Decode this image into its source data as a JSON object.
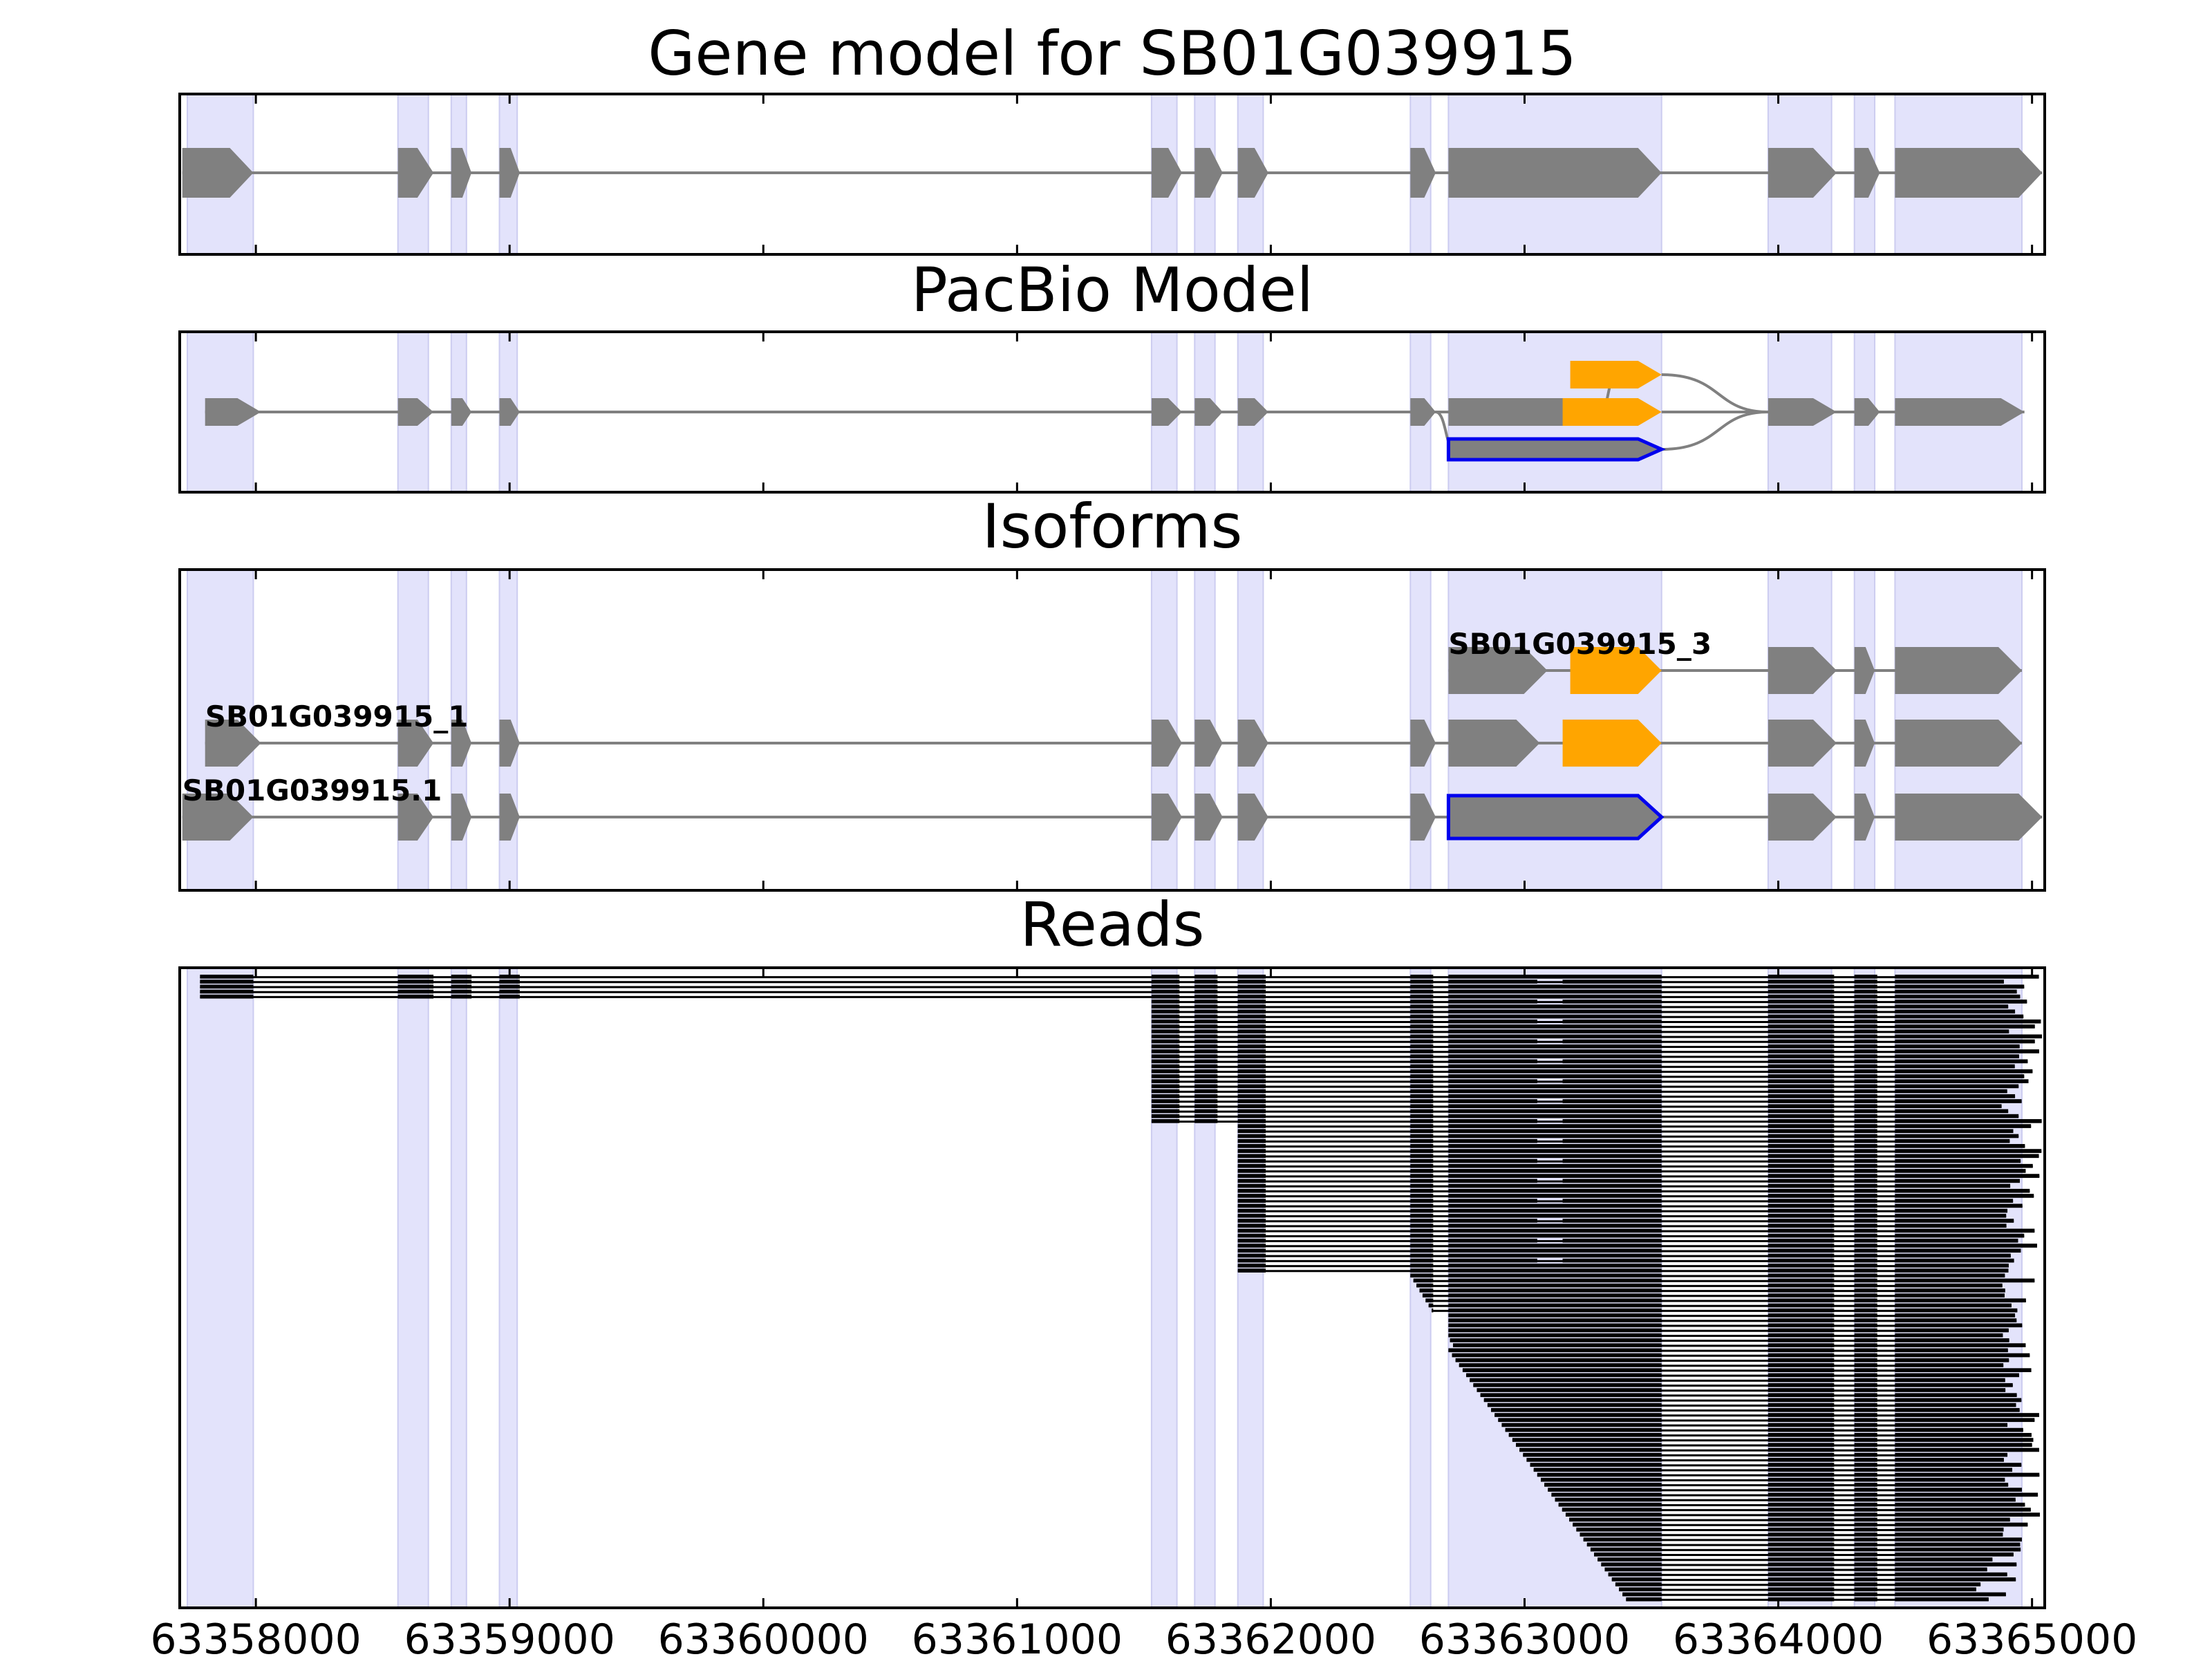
{
  "chart_data": [
    {
      "type": "gene_track",
      "title": "Gene model for SB01G039915",
      "xlim": [
        63357700,
        63365050
      ],
      "highlight_regions": [
        [
          63357730,
          63357990
        ],
        [
          63358560,
          63358680
        ],
        [
          63358770,
          63358830
        ],
        [
          63358960,
          63359030
        ],
        [
          63361530,
          63361630
        ],
        [
          63361700,
          63361780
        ],
        [
          63361870,
          63361970
        ],
        [
          63362550,
          63362630
        ],
        [
          63362700,
          63363540
        ],
        [
          63363960,
          63364210
        ],
        [
          63364300,
          63364380
        ],
        [
          63364460,
          63364960
        ]
      ],
      "models": [
        {
          "label": "",
          "style": "gray",
          "exons": [
            [
              63357710,
              63357990
            ],
            [
              63358560,
              63358700
            ],
            [
              63358770,
              63358850
            ],
            [
              63358960,
              63359040
            ],
            [
              63361530,
              63361650
            ],
            [
              63361700,
              63361810
            ],
            [
              63361870,
              63361990
            ],
            [
              63362550,
              63362650
            ],
            [
              63362700,
              63363540
            ],
            [
              63363960,
              63364230
            ],
            [
              63364300,
              63364400
            ],
            [
              63364460,
              63365040
            ]
          ]
        }
      ]
    },
    {
      "type": "gene_track",
      "title": "PacBio Model",
      "xlim": [
        63357700,
        63365050
      ],
      "highlight_regions": [
        [
          63357730,
          63357990
        ],
        [
          63358560,
          63358680
        ],
        [
          63358770,
          63358830
        ],
        [
          63358960,
          63359030
        ],
        [
          63361530,
          63361630
        ],
        [
          63361700,
          63361780
        ],
        [
          63361870,
          63361970
        ],
        [
          63362550,
          63362630
        ],
        [
          63362700,
          63363540
        ],
        [
          63363960,
          63364210
        ],
        [
          63364300,
          63364380
        ],
        [
          63364460,
          63364960
        ]
      ],
      "models": [
        {
          "label": "",
          "style": "gray",
          "exons": [
            [
              63357800,
              63358020
            ],
            [
              63358560,
              63358700
            ],
            [
              63358770,
              63358850
            ],
            [
              63358960,
              63359040
            ],
            [
              63361530,
              63361650
            ],
            [
              63361700,
              63361810
            ],
            [
              63361870,
              63361990
            ],
            [
              63362550,
              63362650
            ],
            [
              63362700,
              63363300
            ]
          ]
        },
        {
          "label": "",
          "style": "orange",
          "exons": [
            [
              63363180,
              63363540
            ]
          ]
        },
        {
          "label": "",
          "style": "orange",
          "exons": [
            [
              63363150,
              63363540
            ]
          ]
        },
        {
          "label": "",
          "style": "outlined",
          "exons": [
            [
              63362700,
              63363540
            ]
          ]
        },
        {
          "label": "",
          "style": "gray",
          "exons": [
            [
              63363960,
              63364230
            ],
            [
              63364300,
              63364400
            ],
            [
              63364460,
              63364970
            ]
          ]
        }
      ]
    },
    {
      "type": "gene_track",
      "title": "Isoforms",
      "xlim": [
        63357700,
        63365050
      ],
      "highlight_regions": [
        [
          63357730,
          63357990
        ],
        [
          63358560,
          63358680
        ],
        [
          63358770,
          63358830
        ],
        [
          63358960,
          63359030
        ],
        [
          63361530,
          63361630
        ],
        [
          63361700,
          63361780
        ],
        [
          63361870,
          63361970
        ],
        [
          63362550,
          63362630
        ],
        [
          63362700,
          63363540
        ],
        [
          63363960,
          63364210
        ],
        [
          63364300,
          63364380
        ],
        [
          63364460,
          63364960
        ]
      ],
      "models": [
        {
          "label": "SB01G039915_3",
          "style": "gray",
          "exons": [
            [
              63362700,
              63363090
            ],
            [
              63363180,
              63363540
            ],
            [
              63363960,
              63364230
            ],
            [
              63364300,
              63364380
            ],
            [
              63364460,
              63364960
            ]
          ]
        },
        {
          "label": "SB01G039915_1",
          "style": "gray",
          "exons": [
            [
              63357800,
              63358020
            ],
            [
              63358560,
              63358700
            ],
            [
              63358770,
              63358850
            ],
            [
              63358960,
              63359040
            ],
            [
              63361530,
              63361650
            ],
            [
              63361700,
              63361810
            ],
            [
              63361870,
              63361990
            ],
            [
              63362550,
              63362650
            ],
            [
              63362700,
              63363060
            ],
            [
              63363150,
              63363540
            ],
            [
              63363960,
              63364230
            ],
            [
              63364300,
              63364380
            ],
            [
              63364460,
              63364960
            ]
          ]
        },
        {
          "label": "SB01G039915.1",
          "style": "gray",
          "exons": [
            [
              63357710,
              63357990
            ],
            [
              63358560,
              63358700
            ],
            [
              63358770,
              63358850
            ],
            [
              63358960,
              63359040
            ],
            [
              63361530,
              63361650
            ],
            [
              63361700,
              63361810
            ],
            [
              63361870,
              63361990
            ],
            [
              63362550,
              63362650
            ],
            [
              63362700,
              63363540
            ],
            [
              63363960,
              63364230
            ],
            [
              63364300,
              63364380
            ],
            [
              63364460,
              63365040
            ]
          ]
        }
      ]
    },
    {
      "type": "reads",
      "title": "Reads",
      "xlim": [
        63357700,
        63365050
      ],
      "xticks": [
        63358000,
        63359000,
        63360000,
        63361000,
        63362000,
        63363000,
        63364000,
        63365000
      ],
      "highlight_regions": [
        [
          63357730,
          63357990
        ],
        [
          63358560,
          63358680
        ],
        [
          63358770,
          63358830
        ],
        [
          63358960,
          63359030
        ],
        [
          63361530,
          63361630
        ],
        [
          63361700,
          63361780
        ],
        [
          63361870,
          63361970
        ],
        [
          63362550,
          63362630
        ],
        [
          63362700,
          63363540
        ],
        [
          63363960,
          63364210
        ],
        [
          63364300,
          63364380
        ],
        [
          63364460,
          63364960
        ]
      ],
      "read_count": 126
    }
  ]
}
